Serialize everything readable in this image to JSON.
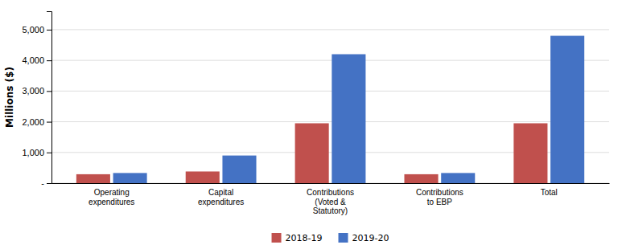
{
  "chart_data": {
    "type": "bar",
    "categories": [
      "Operating\nexpenditures",
      "Capital\nexpenditures",
      "Contributions\n(Voted &\nStatutory)",
      "Contributions\nto EBP",
      "Total"
    ],
    "series": [
      {
        "name": "2018-19",
        "color": "#C0504D",
        "values": [
          290,
          380,
          1950,
          290,
          1950
        ]
      },
      {
        "name": "2019-20",
        "color": "#4472C4",
        "values": [
          330,
          900,
          4200,
          330,
          4800
        ]
      }
    ],
    "ylabel": "Millions ($)",
    "ylim": [
      0,
      5600
    ],
    "yticks": [
      {
        "value": 0,
        "label": "-"
      },
      {
        "value": 1000,
        "label": "1,000"
      },
      {
        "value": 2000,
        "label": "2,000"
      },
      {
        "value": 3000,
        "label": "3,000"
      },
      {
        "value": 4000,
        "label": "4,000"
      },
      {
        "value": 5000,
        "label": "5,000"
      }
    ],
    "grid": true,
    "legend": "bottom"
  }
}
